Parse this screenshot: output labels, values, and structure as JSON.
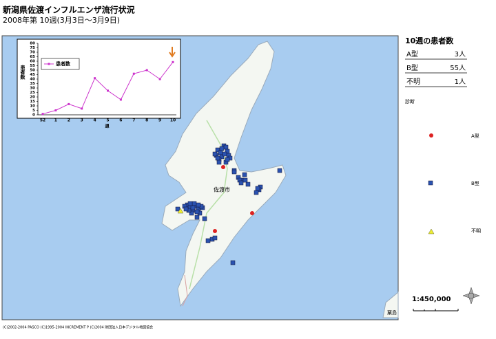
{
  "title": "新潟県佐渡インフルエンザ流行状況",
  "subtitle": "2008年第 10週(3月3日～3月9日)",
  "chart_data": {
    "type": "line",
    "categories": [
      "52",
      "1",
      "2",
      "3",
      "4",
      "5",
      "6",
      "7",
      "8",
      "9",
      "10"
    ],
    "series": [
      {
        "name": "患者数",
        "color": "#cc33cc",
        "values": [
          1,
          5,
          12,
          7,
          41,
          27,
          17,
          46,
          50,
          40,
          59
        ]
      }
    ],
    "ylim": [
      0,
      80
    ],
    "yticks": [
      0,
      5,
      10,
      15,
      20,
      25,
      30,
      35,
      40,
      45,
      50,
      55,
      60,
      65,
      70,
      75,
      80
    ],
    "xlabel": "週",
    "ylabel": "患者数",
    "legend": "upper left",
    "grid": false
  },
  "summary": {
    "title": "10週の患者数",
    "rows": [
      {
        "type": "A型",
        "count": "3人"
      },
      {
        "type": "B型",
        "count": "55人"
      },
      {
        "type": "不明",
        "count": "1人"
      }
    ]
  },
  "legend": {
    "title": "診断",
    "items": [
      "A型",
      "B型",
      "不明"
    ]
  },
  "map": {
    "city": "佐渡市",
    "scale": "1:450,000",
    "island": "粟島",
    "copyright": "(C)2002-2004 PASCO (C)1995-2004 INCREMENT P (C)2004 財団法人日本デジタル地図協会"
  }
}
